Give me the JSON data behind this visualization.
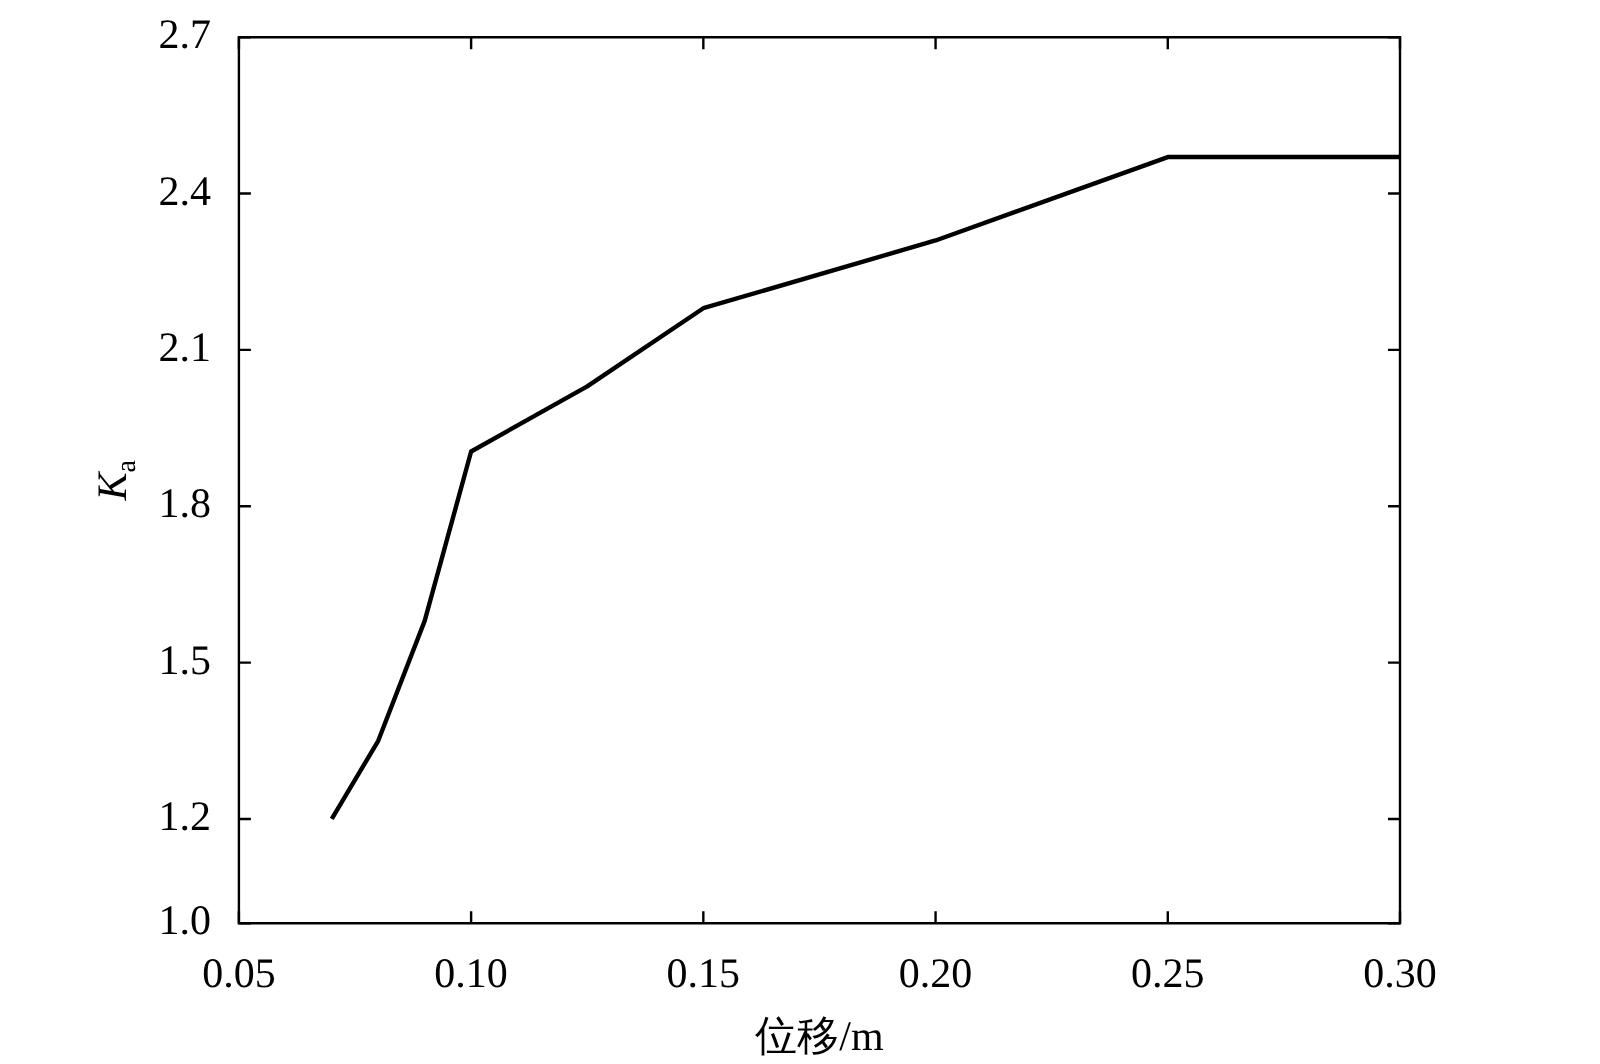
{
  "chart_data": {
    "type": "line",
    "xlabel": "位移/m",
    "ylabel": "K$_{a}$",
    "x": [
      0.07,
      0.08,
      0.09,
      0.1,
      0.125,
      0.15,
      0.2,
      0.25,
      0.3
    ],
    "series": [
      {
        "color": "#000000",
        "values": [
          1.2,
          1.35,
          1.58,
          1.905,
          2.03,
          2.18,
          2.31,
          2.47,
          2.47
        ]
      }
    ],
    "xlim": [
      0.05,
      0.3
    ],
    "xticks": [
      {
        "value": 0.05,
        "label": "0.05"
      },
      {
        "value": 0.1,
        "label": "0.10"
      },
      {
        "value": 0.15,
        "label": "0.15"
      },
      {
        "value": 0.2,
        "label": "0.20"
      },
      {
        "value": 0.25,
        "label": "0.25"
      },
      {
        "value": 0.3,
        "label": "0.30"
      }
    ],
    "ylim": [
      1.0,
      2.7
    ],
    "yticks": [
      {
        "value": 1.0,
        "label": "1.0"
      },
      1.2,
      1.5,
      1.8,
      2.1,
      2.4,
      2.7
    ],
    "grid": false,
    "legend": false,
    "marker": "none",
    "line_style": "solid"
  }
}
